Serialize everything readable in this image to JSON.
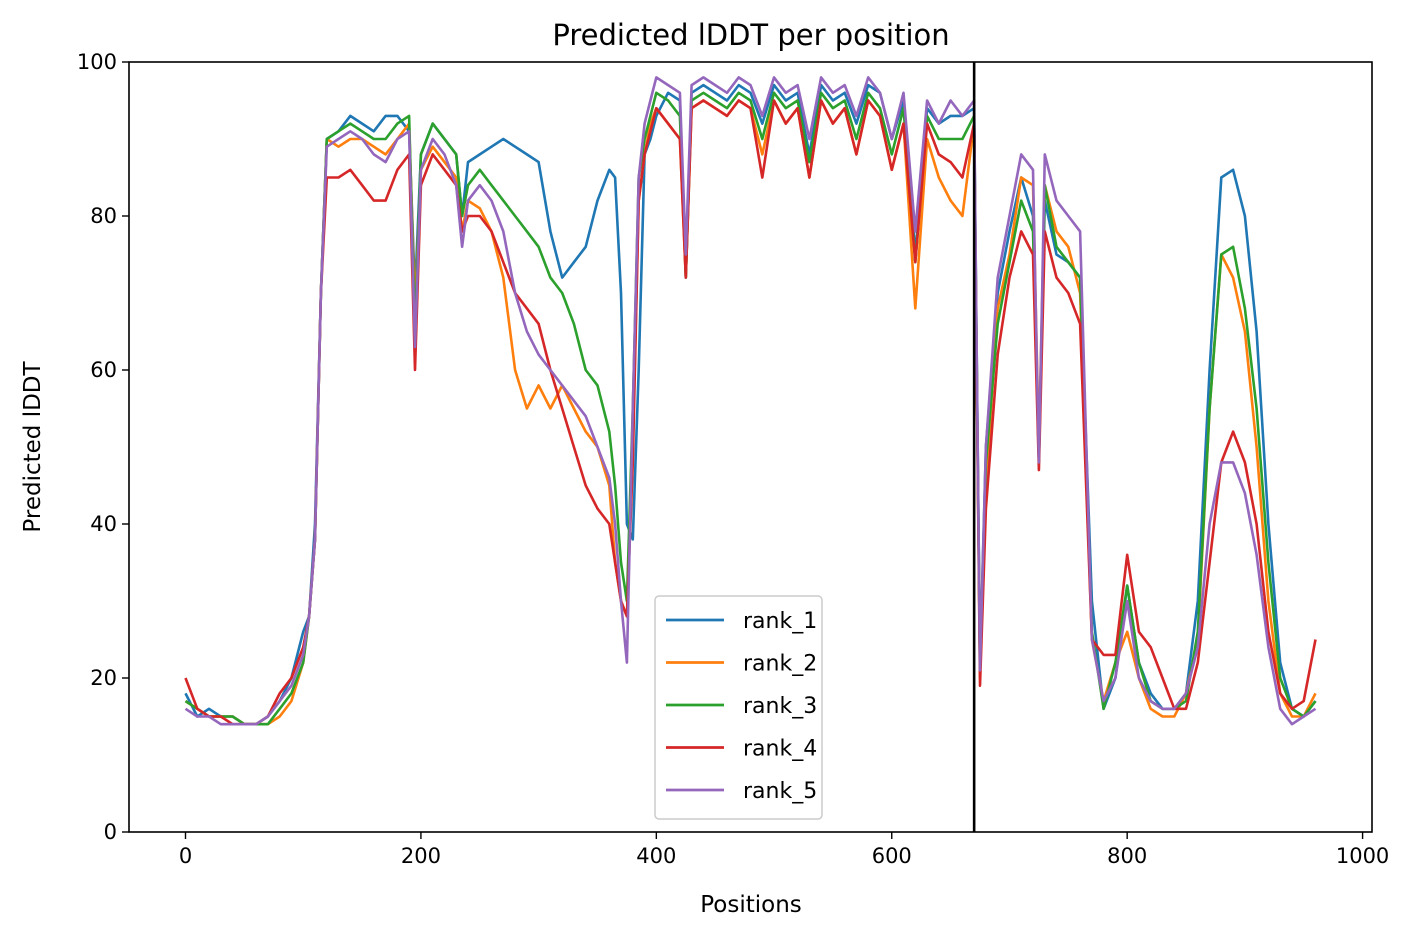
{
  "chart_data": {
    "type": "line",
    "title": "Predicted lDDT per position",
    "xlabel": "Positions",
    "ylabel": "Predicted lDDT",
    "xlim": [
      -48,
      1008
    ],
    "ylim": [
      0,
      100
    ],
    "xticks": [
      0,
      200,
      400,
      600,
      800,
      1000
    ],
    "yticks": [
      0,
      20,
      40,
      60,
      80,
      100
    ],
    "xtick_labels": [
      "0",
      "200",
      "400",
      "600",
      "800",
      "1000"
    ],
    "ytick_labels": [
      "0",
      "20",
      "40",
      "60",
      "80",
      "100"
    ],
    "grid": false,
    "legend_position": "lower center",
    "vline_x": 670,
    "colors": [
      "#1f77b4",
      "#ff7f0e",
      "#2ca02c",
      "#d62728",
      "#9467bd"
    ],
    "x": [
      0,
      10,
      20,
      30,
      40,
      50,
      60,
      70,
      80,
      90,
      100,
      105,
      110,
      115,
      120,
      130,
      140,
      150,
      160,
      170,
      180,
      190,
      195,
      200,
      210,
      220,
      230,
      235,
      240,
      250,
      260,
      270,
      280,
      290,
      300,
      310,
      320,
      330,
      340,
      350,
      360,
      365,
      370,
      375,
      380,
      385,
      390,
      395,
      400,
      410,
      420,
      425,
      430,
      440,
      450,
      460,
      470,
      480,
      490,
      500,
      510,
      520,
      530,
      540,
      550,
      560,
      570,
      580,
      590,
      600,
      610,
      620,
      630,
      640,
      650,
      660,
      670,
      675,
      680,
      690,
      700,
      710,
      720,
      725,
      730,
      740,
      750,
      760,
      770,
      780,
      790,
      800,
      810,
      820,
      830,
      840,
      850,
      860,
      870,
      880,
      890,
      900,
      910,
      920,
      930,
      940,
      950,
      960
    ],
    "series": [
      {
        "name": "rank_1",
        "values": [
          18,
          15,
          16,
          15,
          15,
          14,
          14,
          15,
          17,
          20,
          26,
          28,
          40,
          70,
          90,
          91,
          93,
          92,
          91,
          93,
          93,
          91,
          70,
          88,
          92,
          90,
          88,
          80,
          87,
          88,
          89,
          90,
          89,
          88,
          87,
          78,
          72,
          74,
          76,
          82,
          86,
          85,
          70,
          40,
          38,
          60,
          88,
          90,
          93,
          96,
          95,
          72,
          96,
          97,
          96,
          95,
          97,
          96,
          92,
          97,
          95,
          96,
          88,
          97,
          95,
          96,
          92,
          97,
          96,
          90,
          95,
          75,
          94,
          92,
          93,
          93,
          94,
          22,
          50,
          70,
          78,
          85,
          80,
          48,
          82,
          75,
          74,
          72,
          30,
          16,
          20,
          32,
          22,
          18,
          16,
          16,
          18,
          30,
          60,
          85,
          86,
          80,
          65,
          40,
          22,
          16,
          15,
          17
        ]
      },
      {
        "name": "rank_2",
        "values": [
          17,
          16,
          15,
          15,
          15,
          14,
          14,
          14,
          15,
          17,
          22,
          28,
          38,
          70,
          90,
          89,
          90,
          90,
          89,
          88,
          90,
          92,
          68,
          86,
          89,
          87,
          85,
          78,
          82,
          81,
          78,
          72,
          60,
          55,
          58,
          55,
          58,
          55,
          52,
          50,
          45,
          35,
          30,
          28,
          50,
          82,
          88,
          92,
          94,
          92,
          90,
          72,
          94,
          95,
          94,
          93,
          95,
          94,
          88,
          95,
          92,
          94,
          85,
          95,
          92,
          94,
          88,
          95,
          93,
          86,
          92,
          68,
          90,
          85,
          82,
          80,
          92,
          20,
          45,
          68,
          75,
          85,
          84,
          50,
          84,
          78,
          76,
          70,
          25,
          17,
          22,
          26,
          20,
          16,
          15,
          15,
          18,
          25,
          55,
          75,
          72,
          65,
          50,
          30,
          18,
          15,
          15,
          18
        ]
      },
      {
        "name": "rank_3",
        "values": [
          17,
          16,
          15,
          15,
          15,
          14,
          14,
          14,
          16,
          18,
          22,
          28,
          38,
          70,
          90,
          91,
          92,
          91,
          90,
          90,
          92,
          93,
          65,
          88,
          92,
          90,
          88,
          80,
          84,
          86,
          84,
          82,
          80,
          78,
          76,
          72,
          70,
          66,
          60,
          58,
          52,
          45,
          35,
          30,
          55,
          85,
          90,
          93,
          96,
          95,
          93,
          72,
          95,
          96,
          95,
          94,
          96,
          95,
          90,
          96,
          94,
          95,
          87,
          96,
          94,
          95,
          90,
          96,
          94,
          88,
          94,
          74,
          93,
          90,
          90,
          90,
          93,
          21,
          48,
          66,
          74,
          82,
          78,
          48,
          84,
          76,
          74,
          72,
          26,
          16,
          22,
          32,
          22,
          17,
          16,
          16,
          17,
          26,
          55,
          75,
          76,
          68,
          55,
          35,
          20,
          16,
          15,
          17
        ]
      },
      {
        "name": "rank_4",
        "values": [
          20,
          16,
          15,
          15,
          14,
          14,
          14,
          15,
          18,
          20,
          24,
          28,
          38,
          70,
          85,
          85,
          86,
          84,
          82,
          82,
          86,
          88,
          60,
          84,
          88,
          86,
          84,
          78,
          80,
          80,
          78,
          74,
          70,
          68,
          66,
          60,
          55,
          50,
          45,
          42,
          40,
          35,
          30,
          28,
          48,
          82,
          88,
          91,
          94,
          92,
          90,
          72,
          94,
          95,
          94,
          93,
          95,
          94,
          85,
          95,
          92,
          94,
          85,
          95,
          92,
          94,
          88,
          95,
          93,
          86,
          92,
          74,
          92,
          88,
          87,
          85,
          92,
          19,
          42,
          62,
          72,
          78,
          75,
          47,
          78,
          72,
          70,
          66,
          25,
          23,
          23,
          36,
          26,
          24,
          20,
          16,
          16,
          22,
          35,
          48,
          52,
          48,
          40,
          26,
          18,
          16,
          17,
          25
        ]
      },
      {
        "name": "rank_5",
        "values": [
          16,
          15,
          15,
          14,
          14,
          14,
          14,
          15,
          17,
          19,
          23,
          28,
          38,
          70,
          89,
          90,
          91,
          90,
          88,
          87,
          90,
          91,
          63,
          86,
          90,
          88,
          84,
          76,
          82,
          84,
          82,
          78,
          70,
          65,
          62,
          60,
          58,
          56,
          54,
          50,
          46,
          40,
          30,
          22,
          55,
          85,
          92,
          95,
          98,
          97,
          96,
          75,
          97,
          98,
          97,
          96,
          98,
          97,
          93,
          98,
          96,
          97,
          90,
          98,
          96,
          97,
          93,
          98,
          96,
          90,
          96,
          78,
          95,
          92,
          95,
          93,
          95,
          21,
          50,
          72,
          80,
          88,
          86,
          48,
          88,
          82,
          80,
          78,
          25,
          17,
          20,
          30,
          20,
          17,
          16,
          16,
          18,
          24,
          40,
          48,
          48,
          44,
          36,
          24,
          16,
          14,
          15,
          16
        ]
      }
    ]
  }
}
